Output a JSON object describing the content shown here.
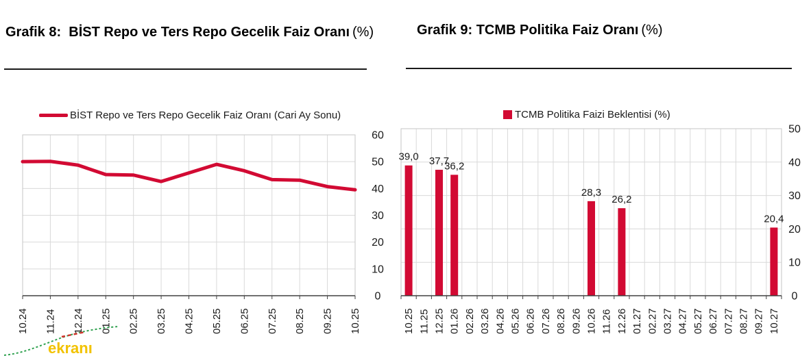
{
  "page": {
    "background": "#ffffff"
  },
  "watermark": {
    "text": "ekranı",
    "color": "#F2C200",
    "sparkline_green": "#2FA14F",
    "sparkline_red": "#D0342C"
  },
  "chart_data": [
    {
      "type": "line",
      "name": "grafik8",
      "title_bold": "Grafik 8:  BİST Repo ve Ters Repo Gecelik Faiz Oranı",
      "title_suffix": "(%)",
      "legend": "BİST Repo ve Ters Repo Gecelik Faiz Oranı (Cari Ay Sonu)",
      "legend_position": "top",
      "categories": [
        "10.24",
        "11.24",
        "12.24",
        "01.25",
        "02.25",
        "03.25",
        "04.25",
        "05.25",
        "06.25",
        "07.25",
        "08.25",
        "09.25",
        "10.25"
      ],
      "values": [
        50.0,
        50.1,
        48.7,
        45.2,
        45.0,
        42.6,
        45.8,
        49.0,
        46.6,
        43.3,
        43.1,
        40.7,
        39.5
      ],
      "ylim": [
        0,
        60
      ],
      "yticks": [
        0,
        10,
        20,
        30,
        40,
        50,
        60
      ],
      "ylabel_side": "right",
      "grid": true,
      "series_color": "#D20A33",
      "gridline_color": "#d9d9d9",
      "axis_color": "#404040"
    },
    {
      "type": "bar",
      "name": "grafik9",
      "title_bold": "Grafik 9: TCMB Politika Faiz Oranı",
      "title_suffix": "(%)",
      "legend": "TCMB Politika Faizi Beklentisi (%)",
      "legend_position": "top",
      "categories": [
        "10.25",
        "11.25",
        "12.25",
        "01.26",
        "02.26",
        "03.26",
        "04.26",
        "05.26",
        "06.26",
        "07.26",
        "08.26",
        "09.26",
        "10.26",
        "11.26",
        "12.26",
        "01.27",
        "02.27",
        "03.27",
        "04.27",
        "05.27",
        "06.27",
        "07.27",
        "08.27",
        "09.27",
        "10.27"
      ],
      "values": [
        39.0,
        null,
        37.7,
        36.2,
        null,
        null,
        null,
        null,
        null,
        null,
        null,
        null,
        28.3,
        null,
        26.2,
        null,
        null,
        null,
        null,
        null,
        null,
        null,
        null,
        null,
        20.4
      ],
      "value_labels": [
        "39,0",
        "",
        "37,7",
        "36,2",
        "",
        "",
        "",
        "",
        "",
        "",
        "",
        "",
        "28,3",
        "",
        "26,2",
        "",
        "",
        "",
        "",
        "",
        "",
        "",
        "",
        "",
        "20,4"
      ],
      "ylim": [
        0,
        50
      ],
      "yticks": [
        0,
        10,
        20,
        30,
        40,
        50
      ],
      "ylabel_side": "right",
      "grid": true,
      "series_color": "#D20A33",
      "gridline_color": "#d9d9d9",
      "axis_color": "#404040"
    }
  ]
}
